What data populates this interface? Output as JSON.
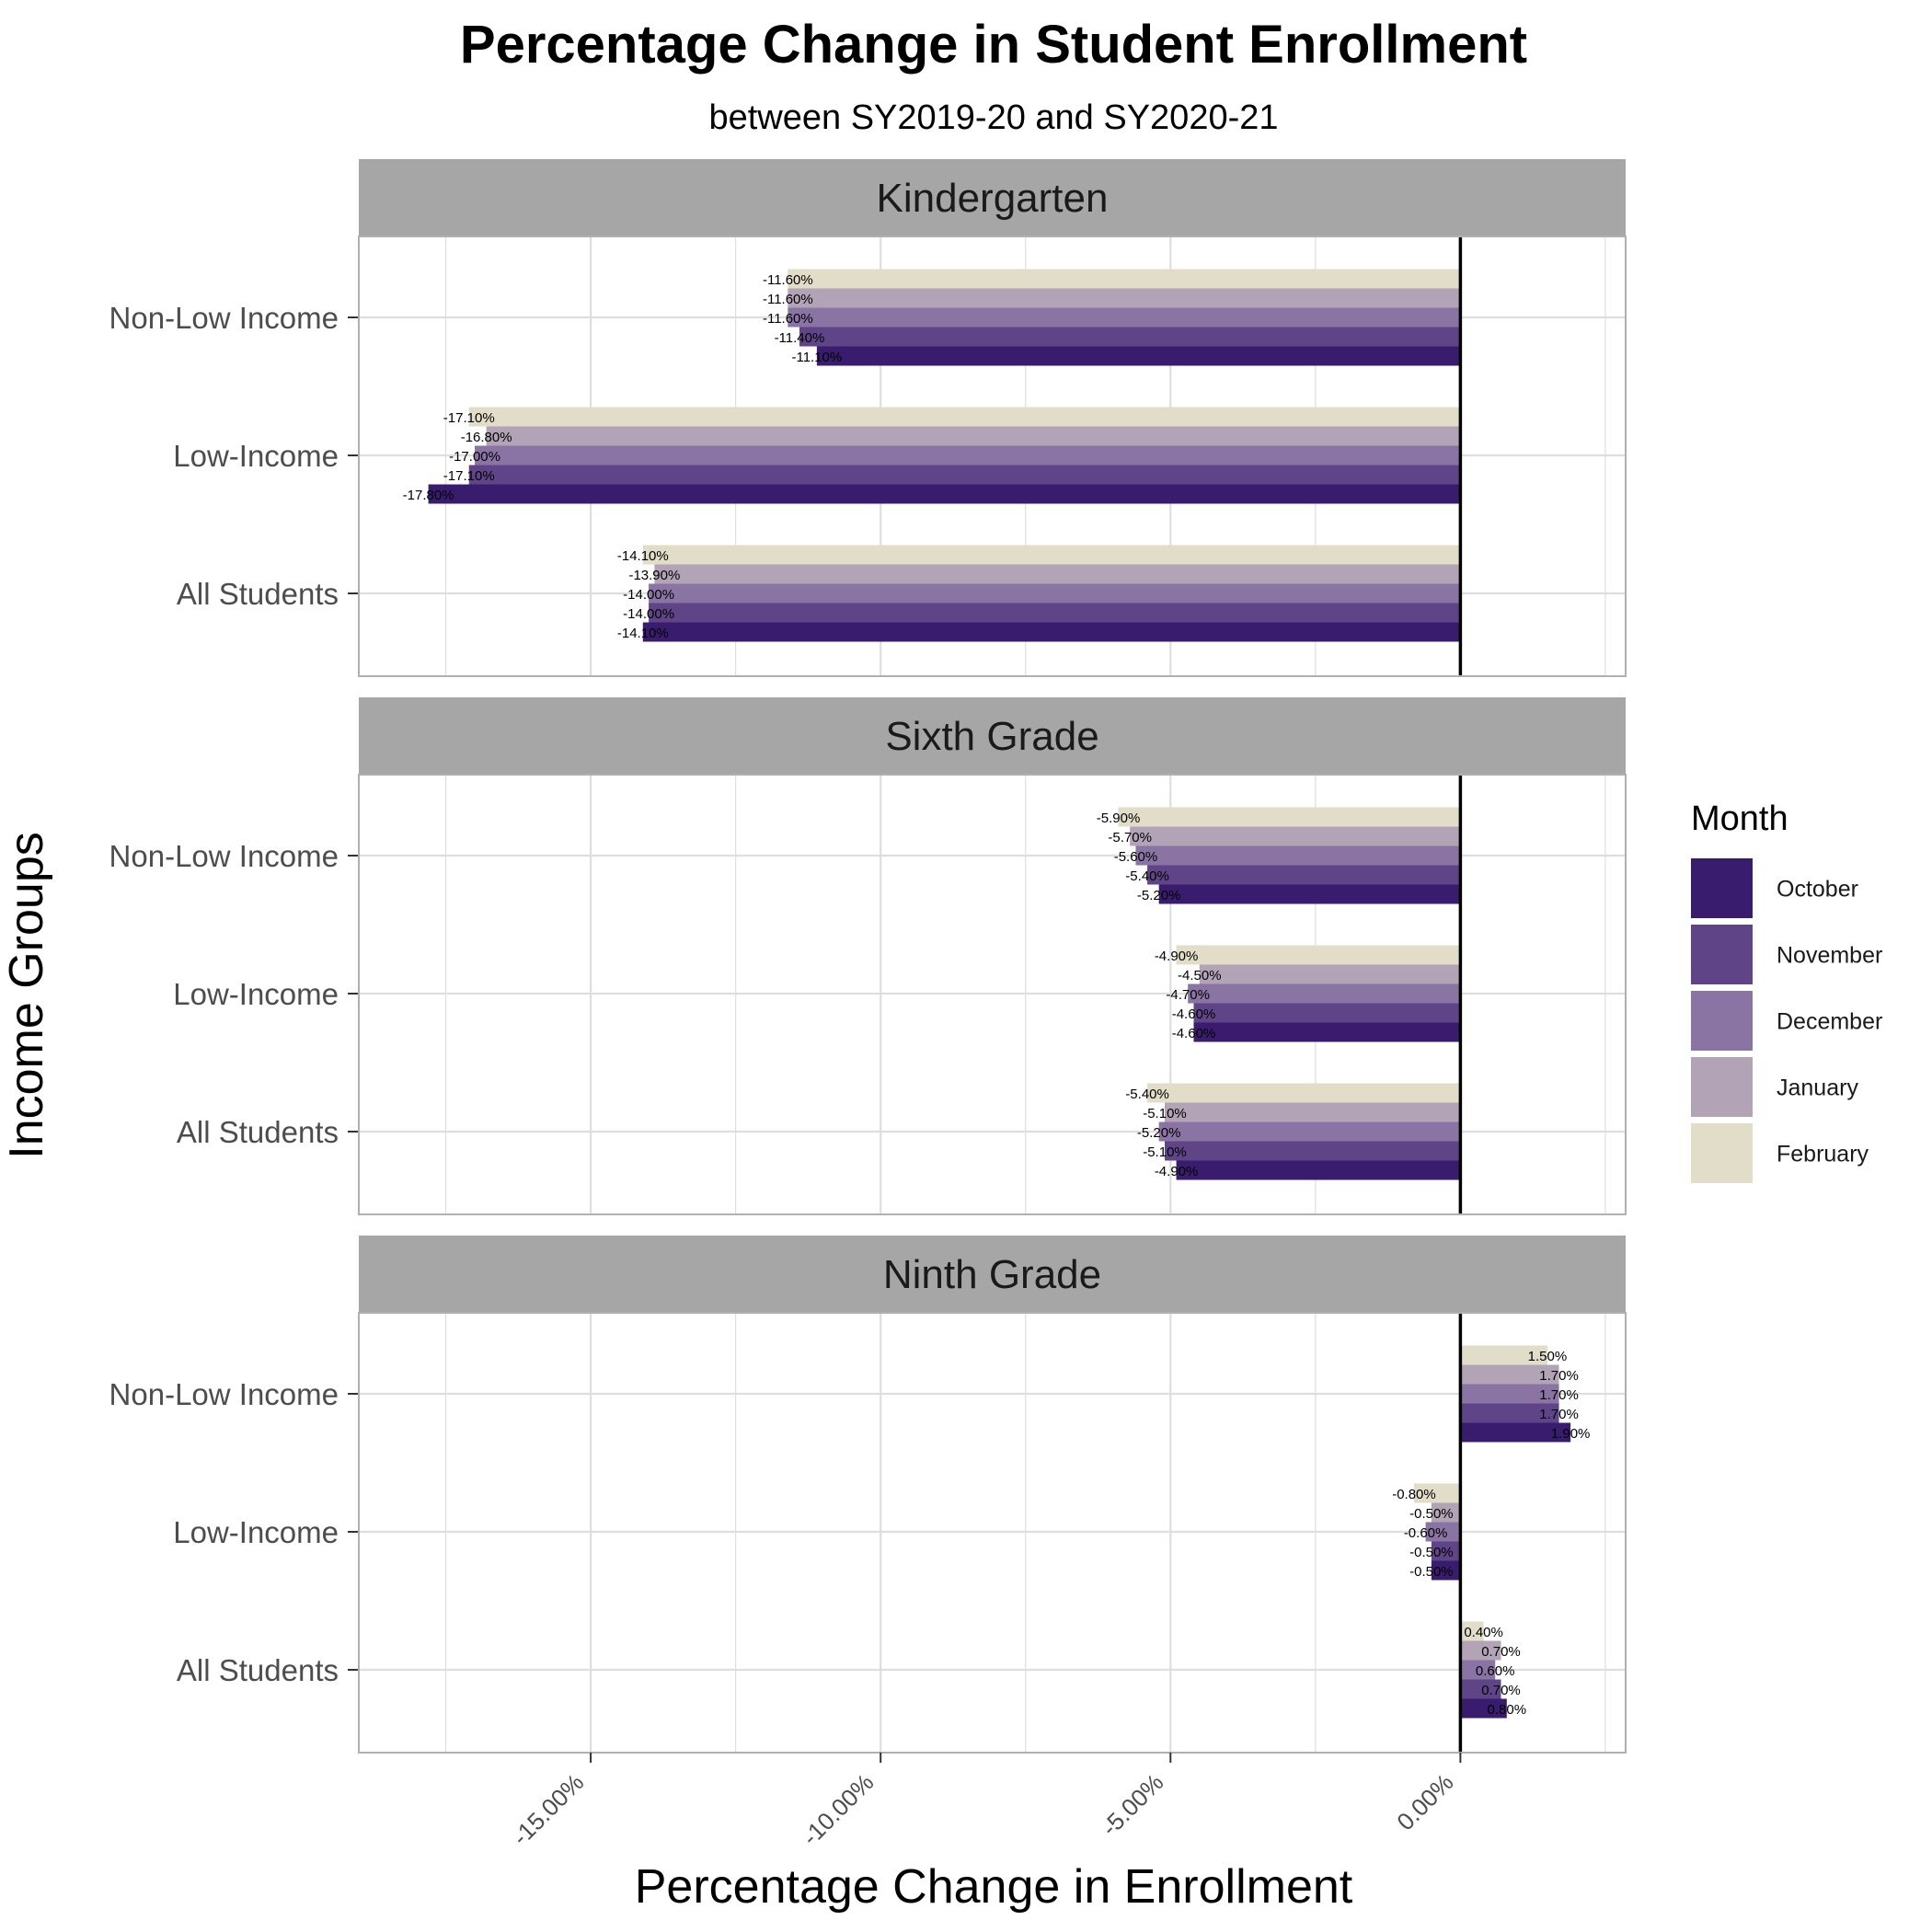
{
  "colors": {
    "October": "#3a1c6e",
    "November": "#5f4587",
    "December": "#8a74a3",
    "January": "#b2a3b6",
    "February": "#e2ddc8",
    "strip_background": "#a6a6a6",
    "grid": "#dedede",
    "panel_border": "#b0b0b0",
    "zero_line": "#000000"
  },
  "chart_data": {
    "type": "bar",
    "orientation": "horizontal",
    "title": "Percentage Change in Student Enrollment",
    "subtitle": "between SY2019-20 and SY2020-21",
    "xlabel": "Percentage Change in Enrollment",
    "ylabel": "Income Groups",
    "xlim": [
      -0.19,
      0.0285
    ],
    "x_ticks": [
      -0.15,
      -0.1,
      -0.05,
      0.0
    ],
    "x_tick_labels": [
      "-15.00%",
      "-10.00%",
      "-5.00%",
      "0.00%"
    ],
    "grid": true,
    "zero_line": 0.0,
    "legend": {
      "title": "Month",
      "position": "right",
      "entries": [
        "October",
        "November",
        "December",
        "January",
        "February"
      ]
    },
    "categories": [
      "Non-Low Income",
      "Low-Income",
      "All Students"
    ],
    "panels": [
      {
        "title": "Kindergarten",
        "groups": [
          {
            "category": "Non-Low Income",
            "values": [
              -0.111,
              -0.114,
              -0.116,
              -0.116,
              -0.116
            ],
            "labels": [
              "-11.10%",
              "-11.40%",
              "-11.60%",
              "-11.60%",
              "-11.60%"
            ]
          },
          {
            "category": "Low-Income",
            "values": [
              -0.178,
              -0.171,
              -0.17,
              -0.168,
              -0.171
            ],
            "labels": [
              "-17.80%",
              "-17.10%",
              "-17.00%",
              "-16.80%",
              "-17.10%"
            ]
          },
          {
            "category": "All Students",
            "values": [
              -0.141,
              -0.14,
              -0.14,
              -0.139,
              -0.141
            ],
            "labels": [
              "-14.10%",
              "-14.00%",
              "-14.00%",
              "-13.90%",
              "-14.10%"
            ]
          }
        ]
      },
      {
        "title": "Sixth Grade",
        "groups": [
          {
            "category": "Non-Low Income",
            "values": [
              -0.052,
              -0.054,
              -0.056,
              -0.057,
              -0.059
            ],
            "labels": [
              "-5.20%",
              "-5.40%",
              "-5.60%",
              "-5.70%",
              "-5.90%"
            ]
          },
          {
            "category": "Low-Income",
            "values": [
              -0.046,
              -0.046,
              -0.047,
              -0.045,
              -0.049
            ],
            "labels": [
              "-4.60%",
              "-4.60%",
              "-4.70%",
              "-4.50%",
              "-4.90%"
            ]
          },
          {
            "category": "All Students",
            "values": [
              -0.049,
              -0.051,
              -0.052,
              -0.051,
              -0.054
            ],
            "labels": [
              "-4.90%",
              "-5.10%",
              "-5.20%",
              "-5.10%",
              "-5.40%"
            ]
          }
        ]
      },
      {
        "title": "Ninth Grade",
        "groups": [
          {
            "category": "Non-Low Income",
            "values": [
              0.019,
              0.017,
              0.017,
              0.017,
              0.015
            ],
            "labels": [
              "1.90%",
              "1.70%",
              "1.70%",
              "1.70%",
              "1.50%"
            ]
          },
          {
            "category": "Low-Income",
            "values": [
              -0.005,
              -0.005,
              -0.006,
              -0.005,
              -0.008
            ],
            "labels": [
              "-0.50%",
              "-0.50%",
              "-0.60%",
              "-0.50%",
              "-0.80%"
            ]
          },
          {
            "category": "All Students",
            "values": [
              0.008,
              0.007,
              0.006,
              0.007,
              0.004
            ],
            "labels": [
              "0.80%",
              "0.70%",
              "0.60%",
              "0.70%",
              "0.40%"
            ]
          }
        ]
      }
    ]
  }
}
